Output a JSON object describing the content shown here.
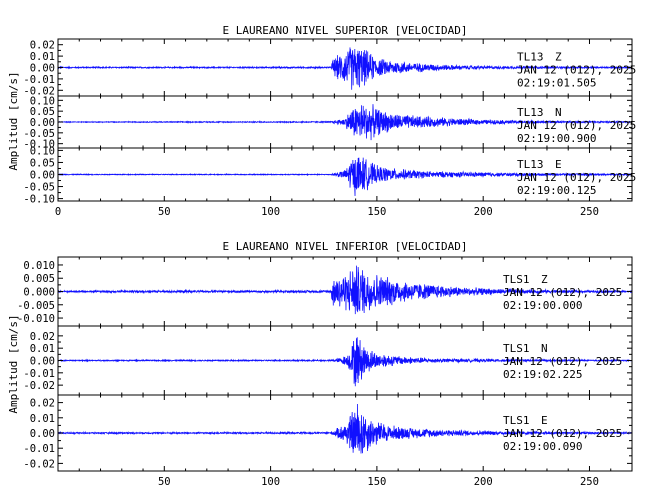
{
  "chart_data": [
    {
      "type": "line",
      "title": "E LAUREANO NIVEL SUPERIOR [VELOCIDAD]",
      "ylabel": "Amplitud [cm/s]",
      "xlabel": "",
      "xlim": [
        0,
        270
      ],
      "xticks": [
        "0",
        "50",
        "100",
        "150",
        "200",
        "250"
      ],
      "grid": false,
      "line_color": "#1010ff",
      "traces": [
        {
          "ylim": [
            -0.025,
            0.025
          ],
          "yticks": [
            "0.02",
            "0.01",
            "0.00",
            "-0.01",
            "-0.02"
          ],
          "station": "TL13",
          "component": "Z",
          "date": "JAN 12 (012), 2025",
          "time": "02:19:01.505",
          "envelope": [
            [
              0,
              0.0006
            ],
            [
              128.5,
              0.0007
            ],
            [
              129,
              0.008
            ],
            [
              131,
              0.011
            ],
            [
              135,
              0.016
            ],
            [
              138,
              0.022
            ],
            [
              141,
              0.021
            ],
            [
              145,
              0.017
            ],
            [
              150,
              0.009
            ],
            [
              156,
              0.007
            ],
            [
              165,
              0.005
            ],
            [
              175,
              0.0035
            ],
            [
              190,
              0.002
            ],
            [
              210,
              0.0012
            ],
            [
              240,
              0.0008
            ],
            [
              270,
              0.0006
            ]
          ]
        },
        {
          "ylim": [
            -0.12,
            0.12
          ],
          "yticks": [
            "0.10",
            "0.05",
            "0.00",
            "-0.05",
            "-0.10"
          ],
          "station": "TL13",
          "component": "N",
          "date": "JAN 12 (012), 2025",
          "time": "02:19:00.900",
          "envelope": [
            [
              0,
              0.002
            ],
            [
              128,
              0.003
            ],
            [
              135,
              0.02
            ],
            [
              138,
              0.07
            ],
            [
              142,
              0.1
            ],
            [
              147,
              0.09
            ],
            [
              152,
              0.06
            ],
            [
              160,
              0.04
            ],
            [
              170,
              0.03
            ],
            [
              185,
              0.02
            ],
            [
              200,
              0.012
            ],
            [
              230,
              0.006
            ],
            [
              270,
              0.003
            ]
          ]
        },
        {
          "ylim": [
            -0.11,
            0.11
          ],
          "yticks": [
            "0.10",
            "0.05",
            "0.00",
            "-0.05",
            "-0.10"
          ],
          "station": "TL13",
          "component": "E",
          "date": "JAN 12 (012), 2025",
          "time": "02:19:00.125",
          "envelope": [
            [
              0,
              0.002
            ],
            [
              128,
              0.002
            ],
            [
              135,
              0.02
            ],
            [
              138,
              0.08
            ],
            [
              141,
              0.1
            ],
            [
              145,
              0.07
            ],
            [
              150,
              0.04
            ],
            [
              160,
              0.025
            ],
            [
              175,
              0.015
            ],
            [
              200,
              0.01
            ],
            [
              230,
              0.005
            ],
            [
              270,
              0.003
            ]
          ]
        }
      ]
    },
    {
      "type": "line",
      "title": "E LAUREANO NIVEL INFERIOR [VELOCIDAD]",
      "ylabel": "Amplitud [cm/s]",
      "xlabel": "",
      "xlim": [
        0,
        270
      ],
      "xticks": [
        "50",
        "100",
        "150",
        "200",
        "250"
      ],
      "grid": false,
      "line_color": "#1010ff",
      "traces": [
        {
          "ylim": [
            -0.013,
            0.013
          ],
          "yticks": [
            "0.010",
            "0.005",
            "0.000",
            "-0.005",
            "-0.010"
          ],
          "station": "TLS1",
          "component": "Z",
          "date": "JAN 12 (012), 2025",
          "time": "02:19:00.000",
          "envelope": [
            [
              0,
              0.0004
            ],
            [
              128.5,
              0.0005
            ],
            [
              129,
              0.006
            ],
            [
              132,
              0.007
            ],
            [
              136,
              0.008
            ],
            [
              140,
              0.0115
            ],
            [
              143,
              0.01
            ],
            [
              148,
              0.008
            ],
            [
              155,
              0.006
            ],
            [
              165,
              0.004
            ],
            [
              175,
              0.003
            ],
            [
              190,
              0.0018
            ],
            [
              210,
              0.001
            ],
            [
              240,
              0.0006
            ],
            [
              270,
              0.0004
            ]
          ]
        },
        {
          "ylim": [
            -0.028,
            0.028
          ],
          "yticks": [
            "0.02",
            "0.01",
            "0.00",
            "-0.01",
            "-0.02"
          ],
          "station": "TLS1",
          "component": "N",
          "date": "JAN 12 (012), 2025",
          "time": "02:19:02.225",
          "envelope": [
            [
              0,
              0.0005
            ],
            [
              128,
              0.0006
            ],
            [
              132,
              0.002
            ],
            [
              136,
              0.005
            ],
            [
              138,
              0.012
            ],
            [
              140,
              0.027
            ],
            [
              142,
              0.02
            ],
            [
              145,
              0.012
            ],
            [
              150,
              0.007
            ],
            [
              160,
              0.004
            ],
            [
              175,
              0.002
            ],
            [
              200,
              0.0012
            ],
            [
              240,
              0.0007
            ],
            [
              270,
              0.0005
            ]
          ]
        },
        {
          "ylim": [
            -0.025,
            0.025
          ],
          "yticks": [
            "0.02",
            "0.01",
            "0.00",
            "-0.01",
            "-0.02"
          ],
          "station": "TLS1",
          "component": "E",
          "date": "JAN 12 (012), 2025",
          "time": "02:19:00.090",
          "envelope": [
            [
              0,
              0.0005
            ],
            [
              128,
              0.0006
            ],
            [
              132,
              0.004
            ],
            [
              136,
              0.009
            ],
            [
              139,
              0.018
            ],
            [
              141,
              0.023
            ],
            [
              144,
              0.016
            ],
            [
              148,
              0.01
            ],
            [
              155,
              0.006
            ],
            [
              165,
              0.004
            ],
            [
              180,
              0.0025
            ],
            [
              200,
              0.0015
            ],
            [
              240,
              0.0008
            ],
            [
              270,
              0.0005
            ]
          ]
        }
      ]
    }
  ]
}
